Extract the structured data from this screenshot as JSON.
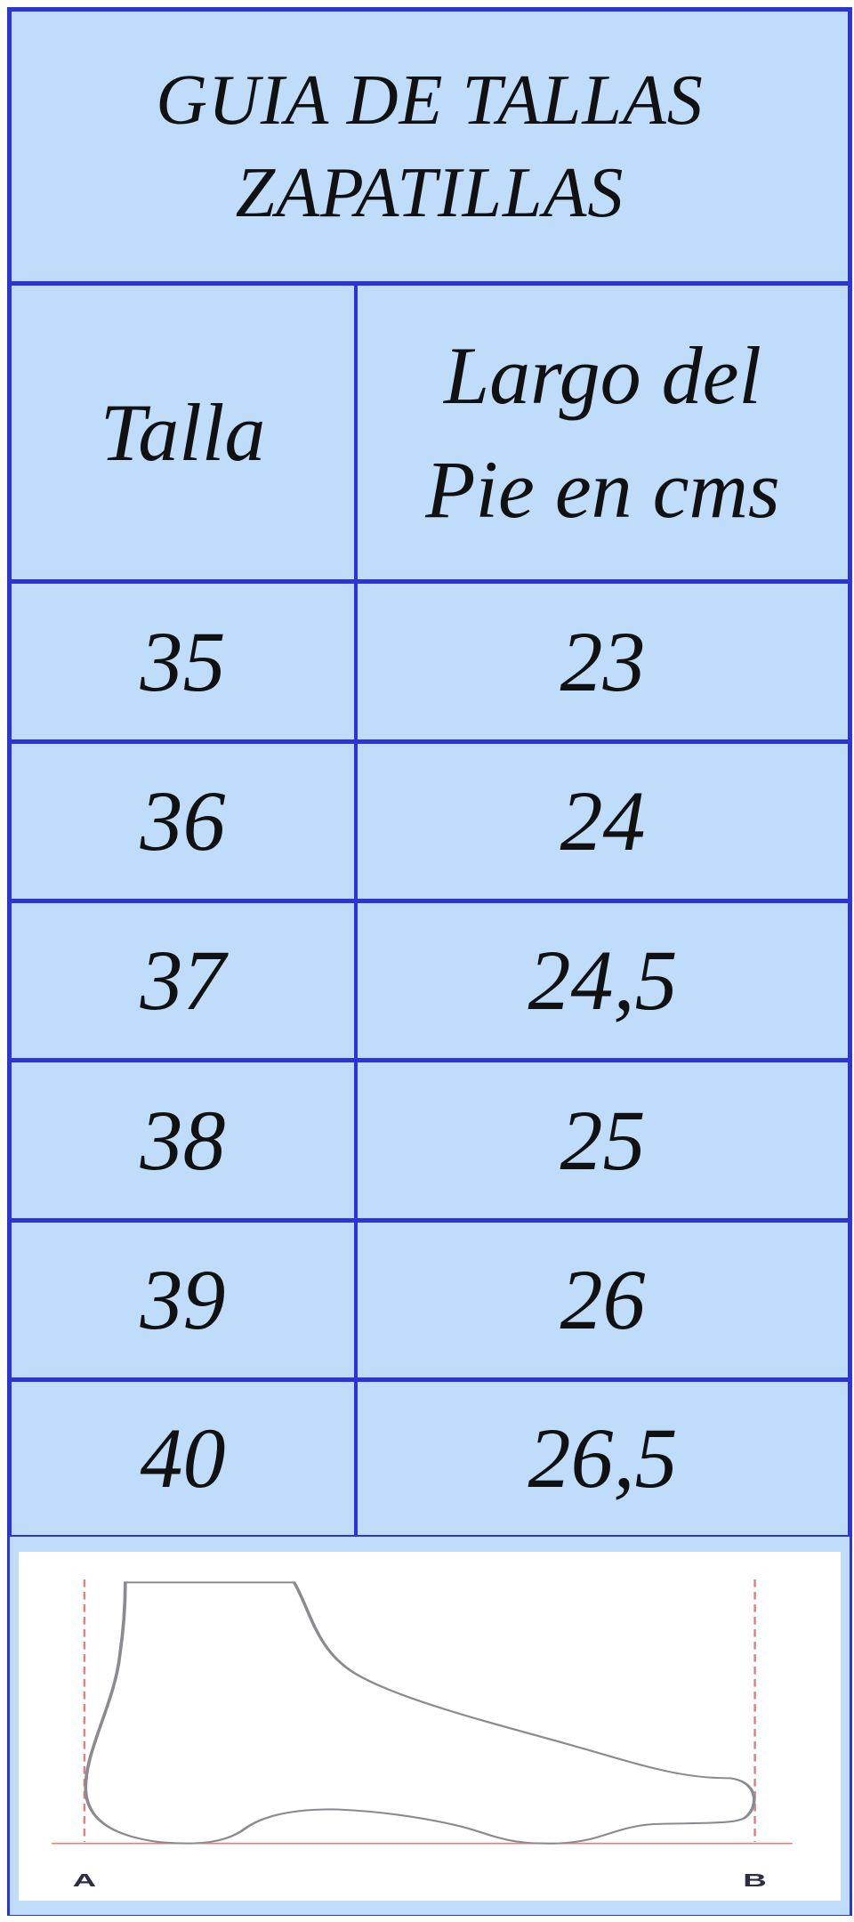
{
  "title": {
    "line1": "GUIA DE TALLAS",
    "line2": "ZAPATILLAS"
  },
  "headers": {
    "size": "Talla",
    "length_line1": "Largo del",
    "length_line2": "Pie en cms"
  },
  "rows": [
    {
      "size": "35",
      "length": "23"
    },
    {
      "size": "36",
      "length": "24"
    },
    {
      "size": "37",
      "length": "24,5"
    },
    {
      "size": "38",
      "length": "25"
    },
    {
      "size": "39",
      "length": "26"
    },
    {
      "size": "40",
      "length": "26,5"
    }
  ],
  "diagram": {
    "label_a": "A",
    "label_b": "B"
  },
  "colors": {
    "cell_bg": "#bfdcfb",
    "border": "#2b35d6",
    "foot_outline": "#8a8a90",
    "guide_lines": "#e08080"
  }
}
